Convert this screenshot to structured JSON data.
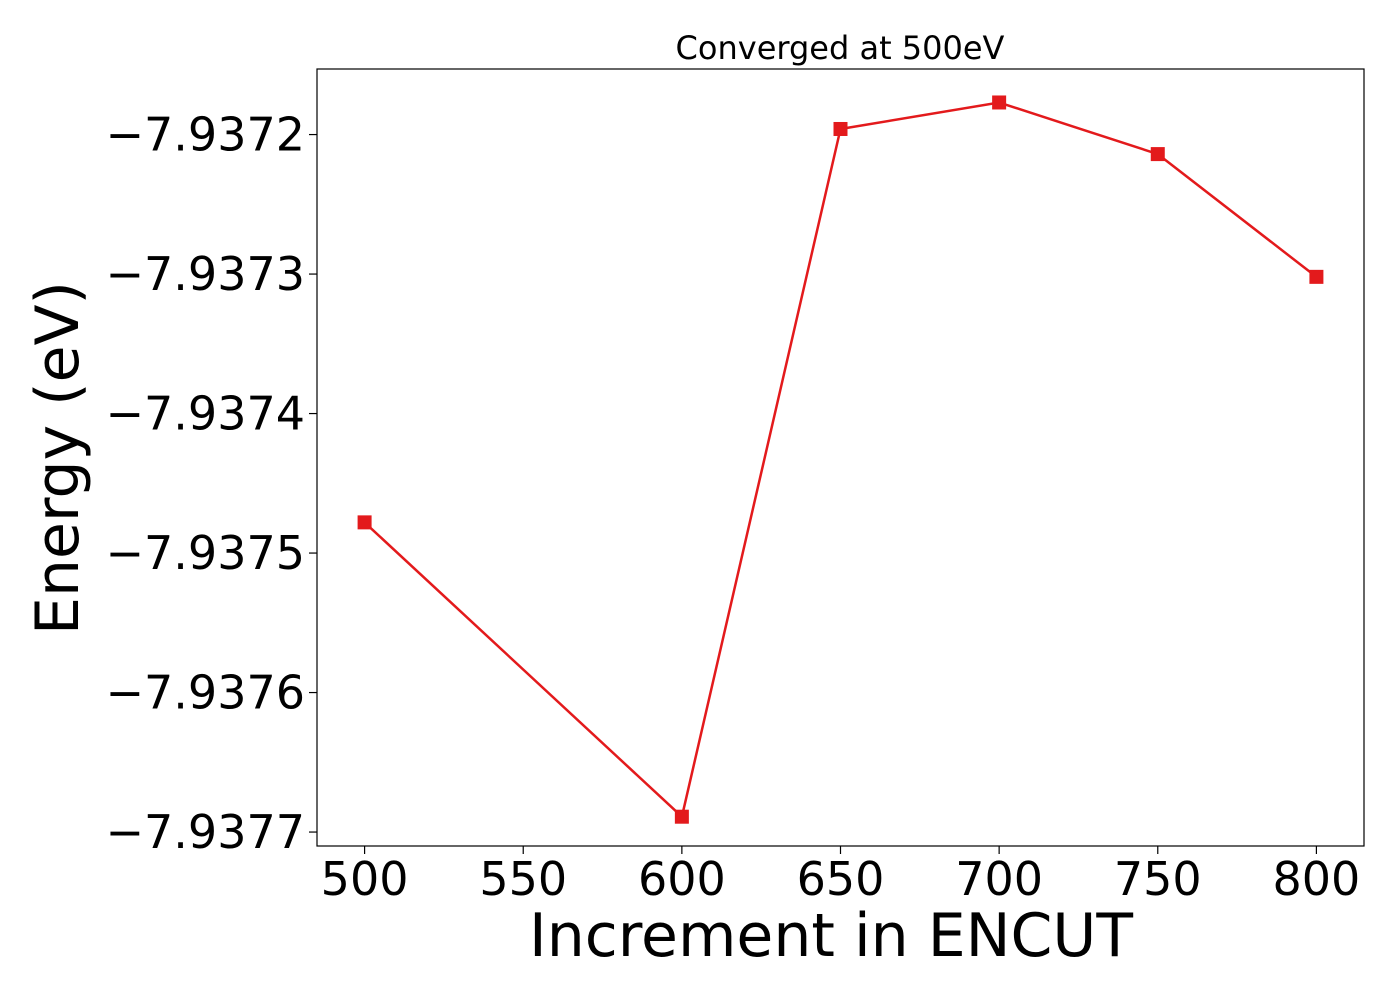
{
  "chart_data": {
    "type": "line",
    "title": "Converged at 500eV",
    "xlabel": "Increment in ENCUT",
    "ylabel": "Energy (eV)",
    "xlim": [
      485,
      815
    ],
    "ylim": [
      -7.93771,
      -7.937153
    ],
    "x_ticks": [
      500,
      550,
      600,
      650,
      700,
      750,
      800
    ],
    "y_ticks": [
      -7.9377,
      -7.9376,
      -7.9375,
      -7.9374,
      -7.9373,
      -7.9372
    ],
    "x_tick_labels": [
      "500",
      "550",
      "600",
      "650",
      "700",
      "750",
      "800"
    ],
    "y_tick_labels": [
      "−7.9377",
      "−7.9376",
      "−7.9375",
      "−7.9374",
      "−7.9373",
      "−7.9372"
    ],
    "grid": false,
    "series": [
      {
        "marker": "square",
        "color": "#e31a1c",
        "x": [
          500,
          600,
          650,
          700,
          750,
          800
        ],
        "y": [
          -7.937478,
          -7.937689,
          -7.937196,
          -7.937177,
          -7.937214,
          -7.937302
        ]
      }
    ]
  }
}
